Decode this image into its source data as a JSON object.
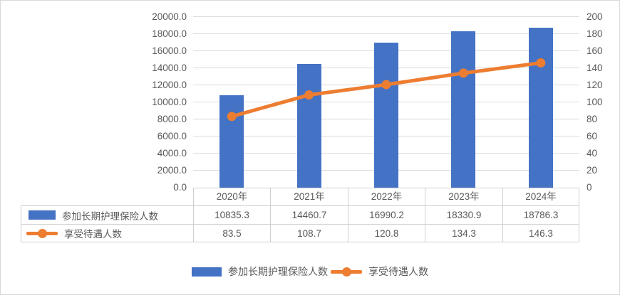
{
  "chart_data": {
    "type": "combo-bar-line",
    "categories": [
      "2020年",
      "2021年",
      "2022年",
      "2023年",
      "2024年"
    ],
    "series": [
      {
        "name": "参加长期护理保险人数",
        "type": "bar",
        "axis": "left",
        "color": "#4472C4",
        "values": [
          10835.3,
          14460.7,
          16990.2,
          18330.9,
          18786.3
        ],
        "display_values": [
          "10835.3",
          "14460.7",
          "16990.2",
          "18330.9",
          "18786.3"
        ]
      },
      {
        "name": "享受待遇人数",
        "type": "line",
        "axis": "right",
        "color": "#ED7D31",
        "values": [
          83.5,
          108.7,
          120.8,
          134.3,
          146.3
        ],
        "display_values": [
          "83.5",
          "108.7",
          "120.8",
          "134.3",
          "146.3"
        ]
      }
    ],
    "left_axis": {
      "min": 0,
      "max": 20000,
      "step": 2000,
      "tick_labels": [
        "0.0",
        "2000.0",
        "4000.0",
        "6000.0",
        "8000.0",
        "10000.0",
        "12000.0",
        "14000.0",
        "16000.0",
        "18000.0",
        "20000.0"
      ]
    },
    "right_axis": {
      "min": 0,
      "max": 200,
      "step": 20,
      "tick_labels": [
        "0",
        "20",
        "40",
        "60",
        "80",
        "100",
        "120",
        "140",
        "160",
        "180",
        "200"
      ]
    },
    "grid": true,
    "legend_position": "bottom",
    "has_data_table": true
  },
  "colors": {
    "bar": "#4472C4",
    "line": "#ED7D31",
    "grid": "#D9D9D9",
    "text": "#595959",
    "table_border": "#CFCFCF",
    "frame_border": "#D9D9D9",
    "background": "#FFFFFF"
  }
}
